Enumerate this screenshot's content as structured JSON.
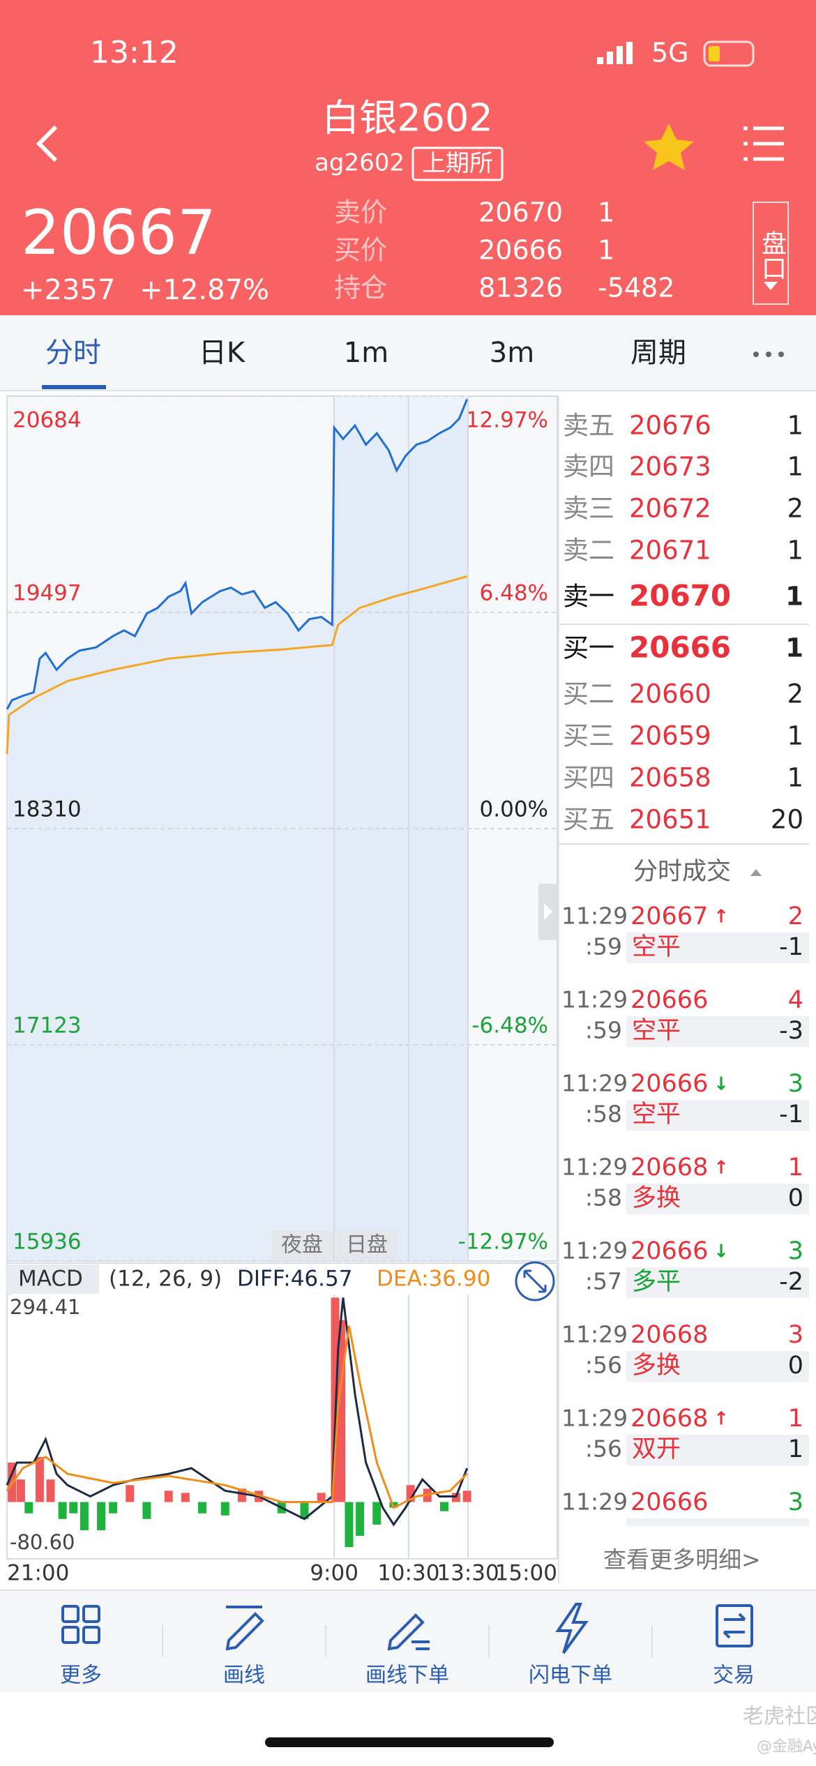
{
  "status": {
    "time": "13:12",
    "network": "5G"
  },
  "header": {
    "title": "白银2602",
    "code": "ag2602",
    "exchange": "上期所",
    "panel_button": "盘口"
  },
  "quote": {
    "price": 20667,
    "change": "+2357",
    "change_pct": "+12.87%",
    "rows": [
      {
        "label": "卖价",
        "value": 20670,
        "qty": 1
      },
      {
        "label": "买价",
        "value": 20666,
        "qty": 1
      },
      {
        "label": "持仓",
        "value": 81326,
        "qty": -5482
      }
    ]
  },
  "tabs": [
    "分时",
    "日K",
    "1m",
    "3m",
    "周期"
  ],
  "chart_data": [
    {
      "type": "line",
      "xlim": [
        0,
        555
      ],
      "ylim": [
        15936,
        20684
      ],
      "yticks": [
        20684,
        19497,
        18310,
        17123,
        15936
      ],
      "y2lim": [
        -12.97,
        12.97
      ],
      "y2ticks": [
        {
          "value": 12.97,
          "label": "12.97%"
        },
        {
          "value": 6.48,
          "label": "6.48%"
        },
        {
          "value": 0,
          "label": "0.00%"
        },
        {
          "value": -6.48,
          "label": "-6.48%"
        },
        {
          "value": -12.97,
          "label": "-12.97%"
        }
      ],
      "session_labels": [
        "夜盘",
        "日盘"
      ],
      "series": [
        {
          "color": "#1f6fd1",
          "x": [
            0,
            5,
            16,
            27,
            33,
            39,
            50,
            61,
            73,
            90,
            107,
            118,
            129,
            141,
            152,
            163,
            175,
            180,
            186,
            197,
            215,
            226,
            237,
            249,
            260,
            271,
            283,
            294,
            305,
            317,
            328,
            330,
            339,
            351,
            362,
            373,
            385,
            393,
            402,
            413,
            424,
            436,
            447,
            456,
            464
          ],
          "values": [
            18965,
            19015,
            19039,
            19058,
            19243,
            19274,
            19182,
            19243,
            19287,
            19305,
            19367,
            19398,
            19367,
            19491,
            19522,
            19583,
            19614,
            19658,
            19491,
            19553,
            19614,
            19633,
            19596,
            19614,
            19522,
            19553,
            19491,
            19398,
            19460,
            19472,
            19429,
            20511,
            20449,
            20523,
            20418,
            20480,
            20387,
            20276,
            20356,
            20418,
            20437,
            20480,
            20511,
            20560,
            20667
          ]
        },
        {
          "color": "#f5a623",
          "x": [
            0,
            2,
            27,
            61,
            107,
            163,
            220,
            277,
            328,
            334,
            356,
            390,
            424,
            464
          ],
          "values": [
            18718,
            18934,
            19027,
            19120,
            19182,
            19243,
            19274,
            19293,
            19318,
            19429,
            19522,
            19583,
            19633,
            19695
          ]
        }
      ]
    },
    {
      "type": "macd",
      "title": "MACD",
      "params": "(12, 26, 9)",
      "diff_label": "DIFF:46.57",
      "dea_label": "DEA:36.90",
      "xlim": [
        0,
        555
      ],
      "xticks": [
        {
          "value": 0,
          "label": "21:00"
        },
        {
          "value": 330,
          "label": "9:00"
        },
        {
          "value": 405,
          "label": "10:30"
        },
        {
          "value": 465,
          "label": "13:30"
        },
        {
          "value": 555,
          "label": "15:00"
        }
      ],
      "ylim": [
        -80.6,
        294.41
      ],
      "yticks": [
        294.41,
        {
          "value": -80.6,
          "label": "-80.60"
        }
      ],
      "series": [
        {
          "color": "#1c2a44",
          "x": [
            0,
            10,
            27,
            39,
            50,
            61,
            84,
            107,
            129,
            163,
            186,
            220,
            254,
            300,
            328,
            334,
            339,
            351,
            362,
            379,
            390,
            402,
            419,
            436,
            453,
            464
          ],
          "values": [
            24,
            56,
            56,
            89,
            40,
            24,
            8,
            24,
            32,
            40,
            48,
            16,
            8,
            -24,
            8,
            217,
            290,
            153,
            56,
            -8,
            -32,
            -8,
            32,
            8,
            8,
            48
          ]
        },
        {
          "color": "#f08c1a",
          "x": [
            0,
            16,
            39,
            61,
            107,
            163,
            220,
            277,
            328,
            334,
            345,
            356,
            373,
            390,
            413,
            447,
            464
          ],
          "values": [
            16,
            48,
            64,
            40,
            27,
            37,
            24,
            0,
            0,
            137,
            250,
            169,
            56,
            -8,
            8,
            16,
            40
          ]
        }
      ],
      "bars": {
        "up_color": "#f05a5a",
        "down_color": "#1db33c",
        "x": [
          5,
          14,
          22,
          33,
          44,
          56,
          67,
          78,
          95,
          107,
          124,
          141,
          163,
          180,
          197,
          220,
          237,
          254,
          277,
          300,
          317,
          331,
          337,
          345,
          356,
          373,
          390,
          407,
          424,
          441,
          453,
          464
        ],
        "values": [
          56,
          32,
          -16,
          64,
          32,
          -24,
          -16,
          -40,
          -40,
          -16,
          24,
          -24,
          16,
          13,
          -16,
          -19,
          19,
          16,
          -16,
          -24,
          13,
          290,
          258,
          -64,
          -48,
          -32,
          -8,
          24,
          19,
          -13,
          13,
          16
        ]
      }
    }
  ],
  "order_book": {
    "sells": [
      {
        "label": "卖五",
        "price": 20676,
        "qty": 1
      },
      {
        "label": "卖四",
        "price": 20673,
        "qty": 1
      },
      {
        "label": "卖三",
        "price": 20672,
        "qty": 2
      },
      {
        "label": "卖二",
        "price": 20671,
        "qty": 1
      },
      {
        "label": "卖一",
        "price": 20670,
        "qty": 1
      }
    ],
    "buys": [
      {
        "label": "买一",
        "price": 20666,
        "qty": 1
      },
      {
        "label": "买二",
        "price": 20660,
        "qty": 2
      },
      {
        "label": "买三",
        "price": 20659,
        "qty": 1
      },
      {
        "label": "买四",
        "price": 20658,
        "qty": 1
      },
      {
        "label": "买五",
        "price": 20651,
        "qty": 20
      }
    ]
  },
  "trades": {
    "title": "分时成交",
    "more": "查看更多明细>",
    "items": [
      {
        "time": "11:29",
        "price": 20667,
        "arrow": "↑",
        "qty": 2,
        "qty_color": "#e8313a",
        "sec": ":59",
        "kind": "空平",
        "kind_color": "#e8313a",
        "change": -1
      },
      {
        "time": "11:29",
        "price": 20666,
        "qty": 4,
        "qty_color": "#e8313a",
        "sec": ":59",
        "kind": "空平",
        "kind_color": "#e8313a",
        "change": -3
      },
      {
        "time": "11:29",
        "price": 20666,
        "arrow": "↓",
        "qty": 3,
        "qty_color": "#1aa33a",
        "sec": ":58",
        "kind": "空平",
        "kind_color": "#e8313a",
        "change": -1
      },
      {
        "time": "11:29",
        "price": 20668,
        "arrow": "↑",
        "qty": 1,
        "qty_color": "#e8313a",
        "sec": ":58",
        "kind": "多换",
        "kind_color": "#e8313a",
        "change": 0
      },
      {
        "time": "11:29",
        "price": 20666,
        "arrow": "↓",
        "qty": 3,
        "qty_color": "#1aa33a",
        "sec": ":57",
        "kind": "多平",
        "kind_color": "#1aa33a",
        "change": -2
      },
      {
        "time": "11:29",
        "price": 20668,
        "qty": 3,
        "qty_color": "#e8313a",
        "sec": ":56",
        "kind": "多换",
        "kind_color": "#e8313a",
        "change": 0
      },
      {
        "time": "11:29",
        "price": 20668,
        "arrow": "↑",
        "qty": 1,
        "qty_color": "#e8313a",
        "sec": ":56",
        "kind": "双开",
        "kind_color": "#e8313a",
        "change": 1
      },
      {
        "time": "11:29",
        "price": 20666,
        "qty": 3,
        "qty_color": "#1aa33a"
      }
    ]
  },
  "toolbar": [
    "更多",
    "画线",
    "画线下单",
    "闪电下单",
    "交易"
  ],
  "watermark": [
    "老虎社区",
    "@金融Ay"
  ]
}
